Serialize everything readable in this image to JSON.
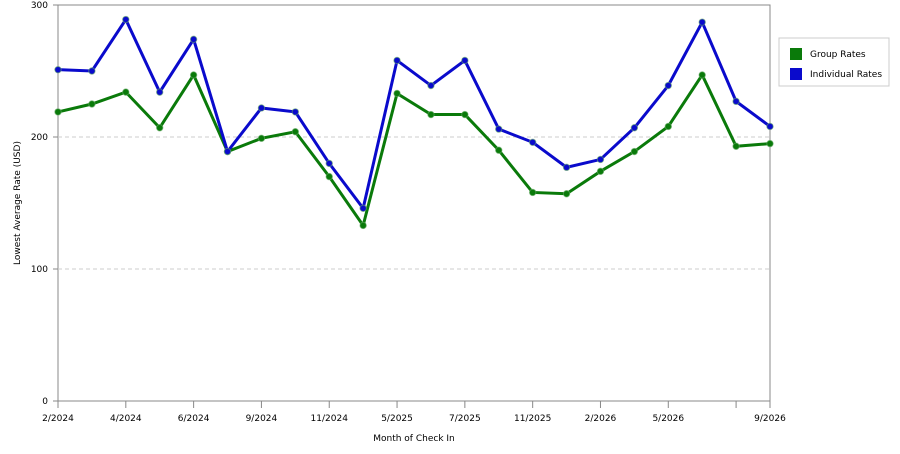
{
  "chart_data": {
    "type": "line",
    "x_label": "Month of Check In",
    "y_label": "Lowest Average Rate (USD)",
    "categories": [
      "2/2024",
      null,
      "4/2024",
      null,
      "6/2024",
      null,
      "9/2024",
      null,
      "11/2024",
      null,
      "5/2025",
      null,
      "7/2025",
      null,
      "11/2025",
      null,
      "2/2026",
      null,
      "5/2026",
      null,
      null,
      "9/2026"
    ],
    "series": [
      {
        "name": "Group Rates",
        "color": "#0a7a0a",
        "values": [
          219,
          225,
          234,
          207,
          247,
          189,
          199,
          204,
          170,
          133,
          233,
          217,
          217,
          190,
          158,
          157,
          174,
          189,
          208,
          247,
          193,
          195
        ]
      },
      {
        "name": "Individual Rates",
        "color": "#0a0acc",
        "values": [
          251,
          250,
          289,
          234,
          274,
          189,
          222,
          219,
          180,
          146,
          258,
          239,
          258,
          206,
          196,
          177,
          183,
          207,
          239,
          287,
          227,
          208
        ]
      }
    ],
    "ylim": [
      0,
      300
    ],
    "yticks": [
      0,
      100,
      200,
      300
    ],
    "grid": true,
    "legend": "right"
  }
}
